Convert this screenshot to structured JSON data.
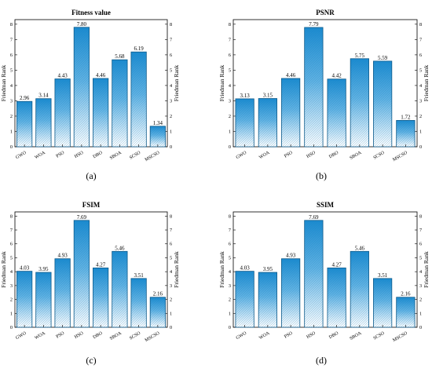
{
  "colors": {
    "bar_dark": "#1a8bd0",
    "bar_light": "#ffffff",
    "bar_stroke": "#0d5a8a",
    "axis": "#000000"
  },
  "chart_data": [
    {
      "type": "bar",
      "title": "Fitness value",
      "caption": "(a)",
      "ylabel": "Friedman Rank",
      "ylabel_right": "Friedman Rank",
      "categories": [
        "GWO",
        "WOA",
        "PSO",
        "HSO",
        "DBO",
        "SBOA",
        "SCSO",
        "MSCSO"
      ],
      "values": [
        2.96,
        3.14,
        4.43,
        7.8,
        4.46,
        5.68,
        6.19,
        1.34
      ],
      "value_labels": [
        "2.96",
        "3.14",
        "4.43",
        "7.80",
        "4.46",
        "5.68",
        "6.19",
        "1.34"
      ],
      "ylim": [
        0,
        8.3
      ],
      "yticks": [
        "0",
        "1",
        "2",
        "3",
        "4",
        "5",
        "6",
        "7",
        "8"
      ],
      "grid": false
    },
    {
      "type": "bar",
      "title": "PSNR",
      "caption": "(b)",
      "ylabel": "Friedman Rank",
      "ylabel_right": "Friedman Rank",
      "categories": [
        "GWO",
        "WOA",
        "PSO",
        "HSO",
        "DBO",
        "SBOA",
        "SCSO",
        "MSCSO"
      ],
      "values": [
        3.13,
        3.15,
        4.46,
        7.79,
        4.42,
        5.75,
        5.59,
        1.72
      ],
      "value_labels": [
        "3.13",
        "3.15",
        "4.46",
        "7.79",
        "4.42",
        "5.75",
        "5.59",
        "1.72"
      ],
      "ylim": [
        0,
        8.3
      ],
      "yticks": [
        "0",
        "1",
        "2",
        "3",
        "4",
        "5",
        "6",
        "7",
        "8"
      ],
      "grid": false
    },
    {
      "type": "bar",
      "title": "FSIM",
      "caption": "(c)",
      "ylabel": "Friedman Rank",
      "ylabel_right": "Friedman Rank",
      "categories": [
        "GWO",
        "WOA",
        "PSO",
        "HSO",
        "DBO",
        "SBOA",
        "SCSO",
        "MSCSO"
      ],
      "values": [
        4.03,
        3.95,
        4.93,
        7.69,
        4.27,
        5.46,
        3.51,
        2.16
      ],
      "value_labels": [
        "4.03",
        "3.95",
        "4.93",
        "7.69",
        "4.27",
        "5.46",
        "3.51",
        "2.16"
      ],
      "ylim": [
        0,
        8.3
      ],
      "yticks": [
        "0",
        "1",
        "2",
        "3",
        "4",
        "5",
        "6",
        "7",
        "8"
      ],
      "grid": false
    },
    {
      "type": "bar",
      "title": "SSIM",
      "caption": "(d)",
      "ylabel": "Friedman Rank",
      "ylabel_right": "Friedman Rank",
      "categories": [
        "GWO",
        "WOA",
        "PSO",
        "HSO",
        "DBO",
        "SBOA",
        "SCSO",
        "MSCSO"
      ],
      "values": [
        4.03,
        3.95,
        4.93,
        7.69,
        4.27,
        5.46,
        3.51,
        2.16
      ],
      "value_labels": [
        "4.03",
        "3.95",
        "4.93",
        "7.69",
        "4.27",
        "5.46",
        "3.51",
        "2.16"
      ],
      "ylim": [
        0,
        8.3
      ],
      "yticks": [
        "0",
        "1",
        "2",
        "3",
        "4",
        "5",
        "6",
        "7",
        "8"
      ],
      "grid": false
    }
  ]
}
